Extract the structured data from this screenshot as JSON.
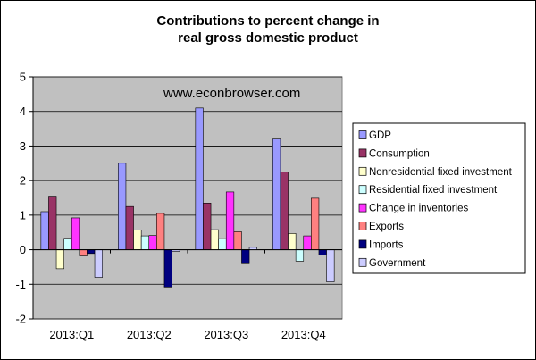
{
  "chart_data": {
    "type": "bar",
    "title_line1": "Contributions to percent change in",
    "title_line2": "real gross domestic product",
    "watermark": "www.econbrowser.com",
    "categories": [
      "2013:Q1",
      "2013:Q2",
      "2013:Q3",
      "2013:Q4"
    ],
    "ylim": [
      -2,
      5
    ],
    "yticks": [
      "-2",
      "-1",
      "0",
      "1",
      "2",
      "3",
      "4",
      "5"
    ],
    "ytick_values": [
      -2,
      -1,
      0,
      1,
      2,
      3,
      4,
      5
    ],
    "xlabel": "",
    "ylabel": "",
    "grid": true,
    "legend_position": "right",
    "plot_background": "#c0c0c0",
    "series": [
      {
        "name": "GDP",
        "color": "#9999ff",
        "values": [
          1.1,
          2.5,
          4.1,
          3.2
        ]
      },
      {
        "name": "Consumption",
        "color": "#993366",
        "values": [
          1.55,
          1.25,
          1.35,
          2.25
        ]
      },
      {
        "name": "Nonresidential fixed investment",
        "color": "#ffffcc",
        "values": [
          -0.55,
          0.57,
          0.58,
          0.47
        ]
      },
      {
        "name": "Residential fixed investment",
        "color": "#ccffff",
        "values": [
          0.33,
          0.4,
          0.32,
          -0.33
        ]
      },
      {
        "name": "Change in inventories",
        "color": "#ff33ff",
        "values": [
          0.92,
          0.41,
          1.67,
          0.4
        ]
      },
      {
        "name": "Exports",
        "color": "#ff8080",
        "values": [
          -0.18,
          1.05,
          0.52,
          1.49
        ]
      },
      {
        "name": "Imports",
        "color": "#000080",
        "values": [
          -0.11,
          -1.08,
          -0.38,
          -0.15
        ]
      },
      {
        "name": "Government",
        "color": "#ccccff",
        "values": [
          -0.8,
          -0.05,
          0.07,
          -0.93
        ]
      }
    ]
  }
}
